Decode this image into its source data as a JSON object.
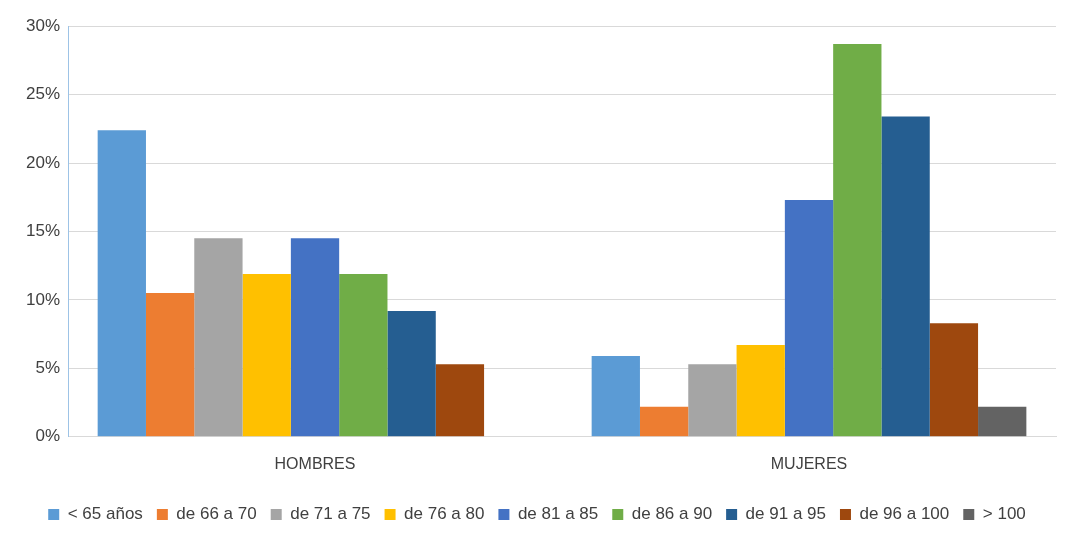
{
  "chart_data": {
    "type": "bar",
    "categories": [
      "HOMBRES",
      "MUJERES"
    ],
    "series": [
      {
        "name": "< 65 años",
        "color": "#5b9bd5",
        "values": [
          22.4,
          5.9
        ]
      },
      {
        "name": "de 66 a 70",
        "color": "#ed7d31",
        "values": [
          10.5,
          2.2
        ]
      },
      {
        "name": "de 71 a 75",
        "color": "#a5a5a5",
        "values": [
          14.5,
          5.3
        ]
      },
      {
        "name": "de 76 a 80",
        "color": "#ffc000",
        "values": [
          11.9,
          6.7
        ]
      },
      {
        "name": "de 81 a 85",
        "color": "#4472c4",
        "values": [
          14.5,
          17.3
        ]
      },
      {
        "name": "de 86 a 90",
        "color": "#70ad47",
        "values": [
          11.9,
          28.7
        ]
      },
      {
        "name": "de 91 a 95",
        "color": "#255e91",
        "values": [
          9.2,
          23.4
        ]
      },
      {
        "name": "de 96 a 100",
        "color": "#9e480e",
        "values": [
          5.3,
          8.3
        ]
      },
      {
        "name": "> 100",
        "color": "#636363",
        "values": [
          0,
          2.2
        ]
      }
    ],
    "ylim": [
      0,
      30
    ],
    "yticks": [
      {
        "value": 0,
        "label": "0%"
      },
      {
        "value": 5,
        "label": "5%"
      },
      {
        "value": 10,
        "label": "10%"
      },
      {
        "value": 15,
        "label": "15%"
      },
      {
        "value": 20,
        "label": "20%"
      },
      {
        "value": 25,
        "label": "25%"
      },
      {
        "value": 30,
        "label": "30%"
      }
    ],
    "grid": "y",
    "legend": "bottom"
  }
}
